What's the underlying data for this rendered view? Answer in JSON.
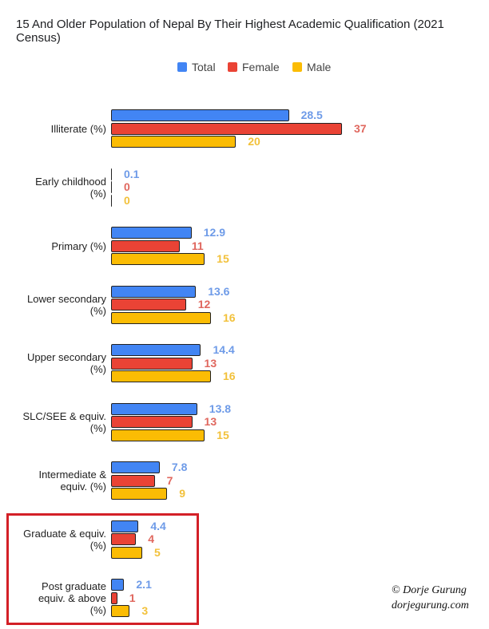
{
  "chart_data": {
    "type": "bar",
    "orientation": "horizontal",
    "title": "15 And Older Population of Nepal By Their Highest Academic Qualification (2021 Census)",
    "categories": [
      "Illiterate (%)",
      "Early childhood (%)",
      "Primary (%)",
      "Lower secondary (%)",
      "Upper secondary (%)",
      "SLC/SEE & equiv. (%)",
      "Intermediate & equiv. (%)",
      "Graduate & equiv. (%)",
      "Post graduate equiv. & above (%)"
    ],
    "category_lines": [
      [
        "Illiterate (%)"
      ],
      [
        "Early childhood",
        "(%)"
      ],
      [
        "Primary (%)"
      ],
      [
        "Lower secondary",
        "(%)"
      ],
      [
        "Upper secondary",
        "(%)"
      ],
      [
        "SLC/SEE & equiv.",
        "(%)"
      ],
      [
        "Intermediate &",
        "equiv. (%)"
      ],
      [
        "Graduate & equiv.",
        "(%)"
      ],
      [
        "Post graduate",
        "equiv. & above",
        "(%)"
      ]
    ],
    "series": [
      {
        "name": "Total",
        "color": "#4285f4",
        "values": [
          28.5,
          0.1,
          12.9,
          13.6,
          14.4,
          13.8,
          7.8,
          4.4,
          2.1
        ]
      },
      {
        "name": "Female",
        "color": "#ea4335",
        "values": [
          37,
          0,
          11,
          12,
          13,
          13,
          7,
          4,
          1
        ]
      },
      {
        "name": "Male",
        "color": "#fbbc04",
        "values": [
          20,
          0,
          15,
          16,
          16,
          15,
          9,
          5,
          3
        ]
      }
    ],
    "data_labels": [
      [
        "28.5",
        "0.1",
        "12.9",
        "13.6",
        "14.4",
        "13.8",
        "7.8",
        "4.4",
        "2.1"
      ],
      [
        "37",
        "0",
        "11",
        "12",
        "13",
        "13",
        "7",
        "4",
        "1"
      ],
      [
        "20",
        "0",
        "15",
        "16",
        "16",
        "15",
        "9",
        "5",
        "3"
      ]
    ],
    "label_colors": [
      "#6e9be8",
      "#e0675e",
      "#f2c13b"
    ],
    "xlim": [
      0,
      37
    ],
    "grid": false,
    "legend_position": "top",
    "highlight_color": "#d32027"
  },
  "credit": {
    "line1": "© Dorje Gurung",
    "line2": "dorjegurung.com"
  }
}
